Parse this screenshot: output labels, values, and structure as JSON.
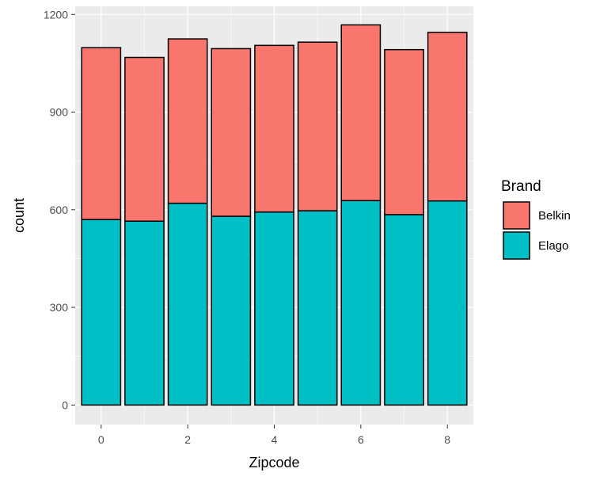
{
  "chart_data": {
    "type": "bar",
    "stacked": true,
    "x": [
      0,
      1,
      2,
      3,
      4,
      5,
      6,
      7,
      8
    ],
    "series": [
      {
        "name": "Elago",
        "color": "#00BFC4",
        "values": [
          570,
          565,
          620,
          580,
          593,
          597,
          628,
          585,
          627
        ]
      },
      {
        "name": "Belkin",
        "color": "#F8766D",
        "values": [
          528,
          503,
          505,
          515,
          512,
          518,
          540,
          507,
          518
        ]
      }
    ],
    "xlabel": "Zipcode",
    "ylabel": "count",
    "xlim": [
      -0.6,
      8.6
    ],
    "ylim": [
      -60,
      1225
    ],
    "xticks": [
      0,
      2,
      4,
      6,
      8
    ],
    "yticks": [
      0,
      300,
      600,
      900,
      1200
    ],
    "grid": true,
    "legend": {
      "title": "Brand",
      "position": "right",
      "entries": [
        "Belkin",
        "Elago"
      ]
    }
  }
}
